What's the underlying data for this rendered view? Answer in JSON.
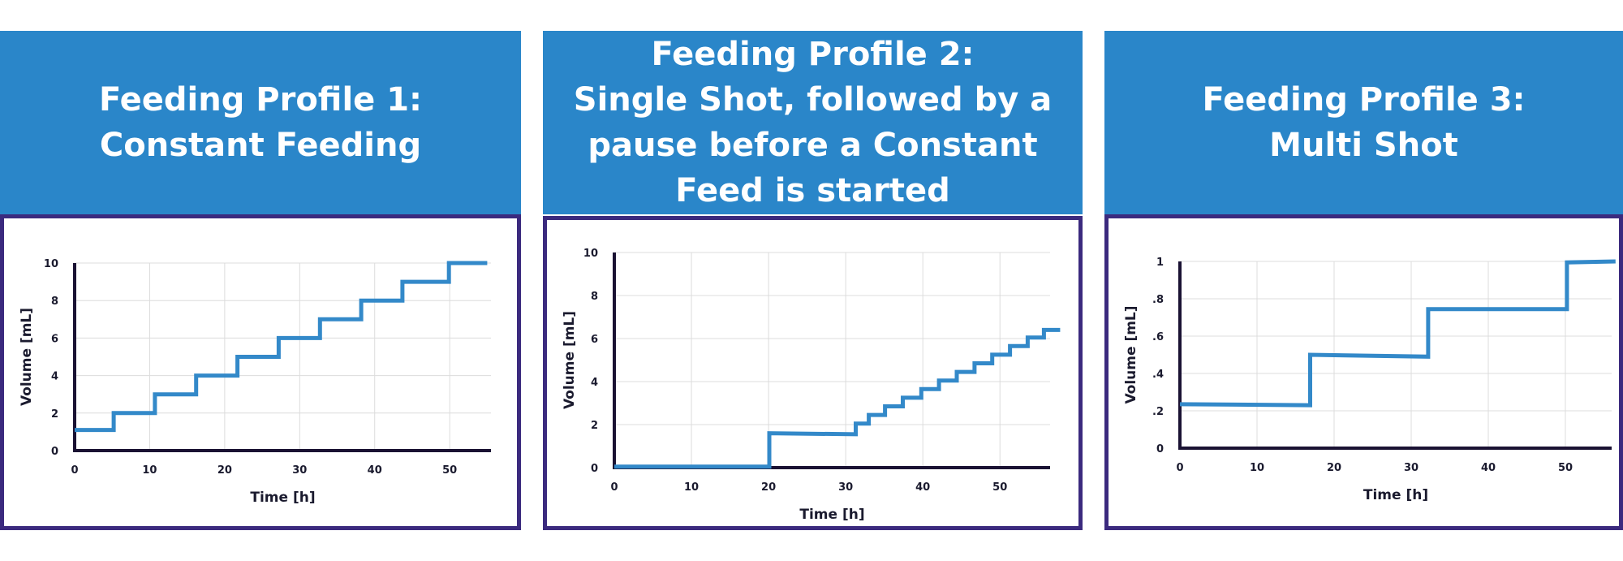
{
  "colors": {
    "header_bg": "#2a86c9",
    "frame": "#3b2a7e",
    "line": "#3389c9",
    "axis": "#1a1233",
    "grid": "#dcdcdc"
  },
  "panels": [
    {
      "title_lines": [
        "Feeding Profile 1:",
        "Constant Feeding"
      ]
    },
    {
      "title_lines": [
        "Feeding Profile 2:",
        "Single Shot, followed by a",
        "pause before a  Constant",
        "Feed is started"
      ]
    },
    {
      "title_lines": [
        "Feeding Profile 3:",
        "Multi Shot"
      ]
    }
  ],
  "chart_data": [
    {
      "type": "line",
      "title": "",
      "xlabel": "Time [h]",
      "ylabel": "Volume [mL]",
      "xlim": [
        0,
        55.5
      ],
      "ylim": [
        0,
        10
      ],
      "x_ticks": [
        "0",
        "10",
        "20",
        "30",
        "40",
        "50"
      ],
      "y_ticks": [
        "0",
        "2",
        "4",
        "6",
        "8",
        "10"
      ],
      "grid": true,
      "series": [
        {
          "x": [
            0,
            5.2,
            5.2,
            10.7,
            10.7,
            16.2,
            16.2,
            21.7,
            21.7,
            27.2,
            27.2,
            32.7,
            32.7,
            38.2,
            38.2,
            43.7,
            43.7,
            49.9,
            49.9,
            55.0
          ],
          "y": [
            1.1,
            1.1,
            2.0,
            2.0,
            3.0,
            3.0,
            4.0,
            4.0,
            5.0,
            5.0,
            6.0,
            6.0,
            7.0,
            7.0,
            8.0,
            8.0,
            9.0,
            9.0,
            10.0,
            10.0
          ]
        }
      ]
    },
    {
      "type": "line",
      "title": "",
      "xlabel": "Time [h]",
      "ylabel": "Volume [mL]",
      "xlim": [
        0,
        56.5
      ],
      "ylim": [
        0,
        10
      ],
      "x_ticks": [
        "0",
        "10",
        "20",
        "30",
        "40",
        "50"
      ],
      "y_ticks": [
        "0",
        "2",
        "4",
        "6",
        "8",
        "10"
      ],
      "grid": true,
      "series": [
        {
          "x": [
            0,
            20.1,
            20.1,
            31.3,
            31.3,
            33.0,
            33.0,
            35.1,
            35.1,
            37.4,
            37.4,
            39.8,
            39.8,
            42.1,
            42.1,
            44.4,
            44.4,
            46.7,
            46.7,
            49.0,
            49.0,
            51.3,
            51.3,
            53.6,
            53.6,
            55.7,
            55.7,
            57.8
          ],
          "y": [
            0.05,
            0.05,
            1.6,
            1.55,
            2.05,
            2.05,
            2.45,
            2.45,
            2.85,
            2.85,
            3.25,
            3.25,
            3.65,
            3.65,
            4.05,
            4.05,
            4.45,
            4.45,
            4.85,
            4.85,
            5.25,
            5.25,
            5.65,
            5.65,
            6.05,
            6.05,
            6.4,
            6.4
          ]
        }
      ]
    },
    {
      "type": "line",
      "title": "",
      "xlabel": "Time [h]",
      "ylabel": "Volume [mL]",
      "xlim": [
        0,
        56
      ],
      "ylim": [
        0,
        1
      ],
      "x_ticks": [
        "0",
        "10",
        "20",
        "30",
        "40",
        "50"
      ],
      "y_ticks": [
        "0",
        ".2",
        ".4",
        ".6",
        ".8",
        "1"
      ],
      "grid": true,
      "series": [
        {
          "x": [
            0,
            16.9,
            16.9,
            32.2,
            32.2,
            50.2,
            50.2,
            56.5
          ],
          "y": [
            0.235,
            0.23,
            0.5,
            0.49,
            0.745,
            0.745,
            0.995,
            1.0
          ]
        }
      ]
    }
  ]
}
